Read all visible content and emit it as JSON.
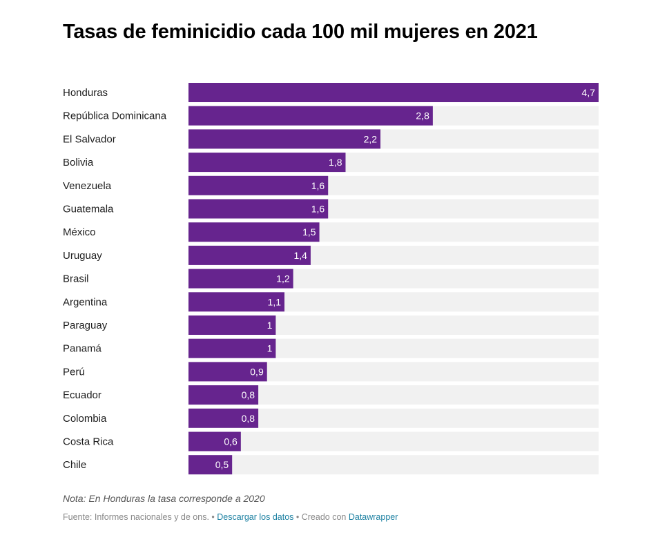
{
  "chart_data": {
    "type": "bar",
    "orientation": "horizontal",
    "title": "Tasas de feminicidio cada 100 mil mujeres en 2021",
    "categories": [
      "Honduras",
      "República Dominicana",
      "El Salvador",
      "Bolivia",
      "Venezuela",
      "Guatemala",
      "México",
      "Uruguay",
      "Brasil",
      "Argentina",
      "Paraguay",
      "Panamá",
      "Perú",
      "Ecuador",
      "Colombia",
      "Costa Rica",
      "Chile"
    ],
    "values": [
      4.7,
      2.8,
      2.2,
      1.8,
      1.6,
      1.6,
      1.5,
      1.4,
      1.2,
      1.1,
      1,
      1,
      0.9,
      0.8,
      0.8,
      0.6,
      0.5
    ],
    "value_labels": [
      "4,7",
      "2,8",
      "2,2",
      "1,8",
      "1,6",
      "1,6",
      "1,5",
      "1,4",
      "1,2",
      "1,1",
      "1",
      "1",
      "0,9",
      "0,8",
      "0,8",
      "0,6",
      "0,5"
    ],
    "xlim": [
      0,
      4.7
    ],
    "bar_color": "#66248e",
    "track_color": "#f1f1f1",
    "grid": false
  },
  "note": "Nota: En Honduras la tasa corresponde a 2020",
  "footer": {
    "source": "Fuente: Informes nacionales y de ons. • ",
    "download_link": "Descargar los datos",
    "separator": " • Creado con ",
    "creator_link": "Datawrapper"
  }
}
